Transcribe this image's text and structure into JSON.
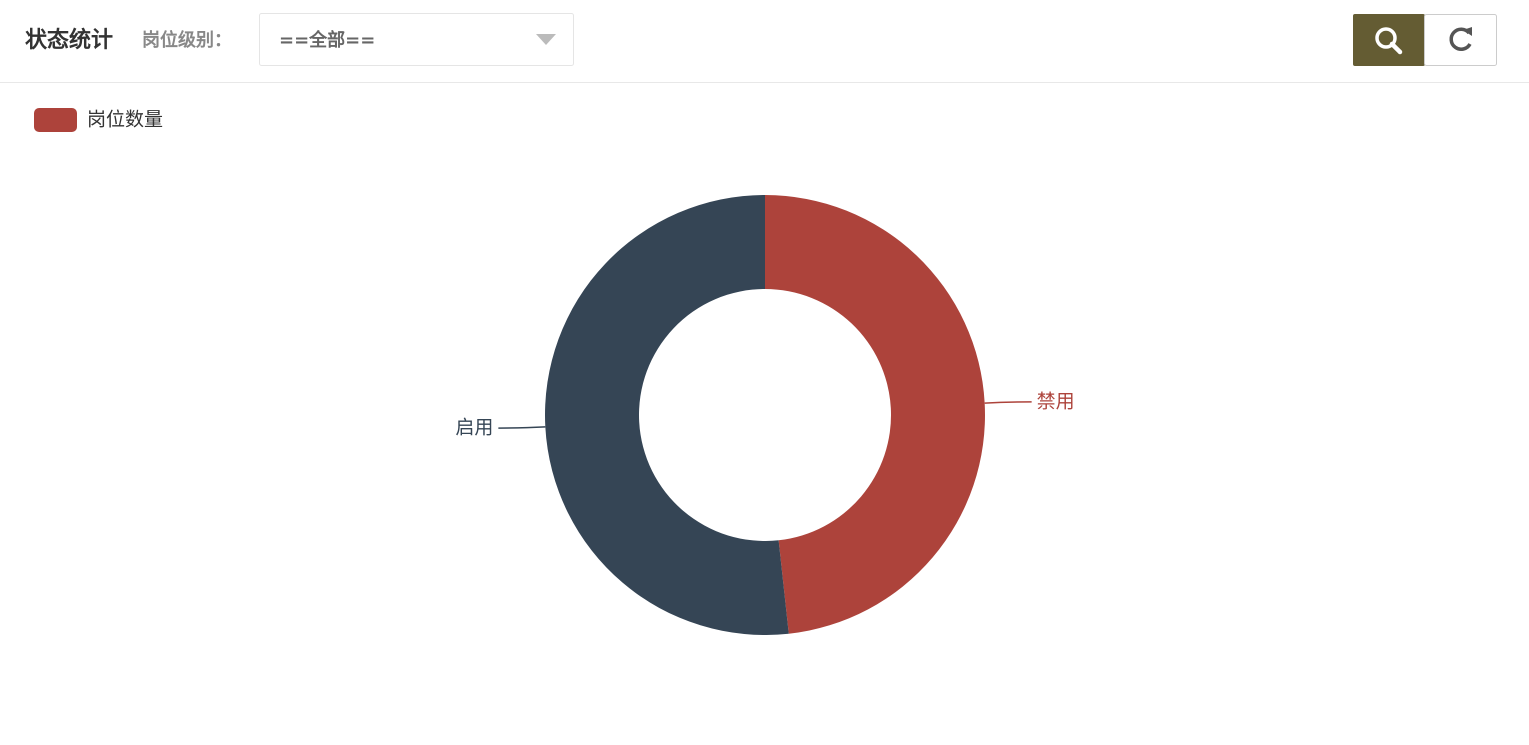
{
  "header": {
    "title": "状态统计",
    "filter_label": "岗位级别：",
    "filter_value": "==全部=="
  },
  "chart_data": {
    "type": "pie",
    "series_name": "岗位数量",
    "categories": [
      "禁用",
      "启用"
    ],
    "values": [
      14,
      15
    ],
    "colors": [
      "#ad433b",
      "#354555"
    ]
  }
}
